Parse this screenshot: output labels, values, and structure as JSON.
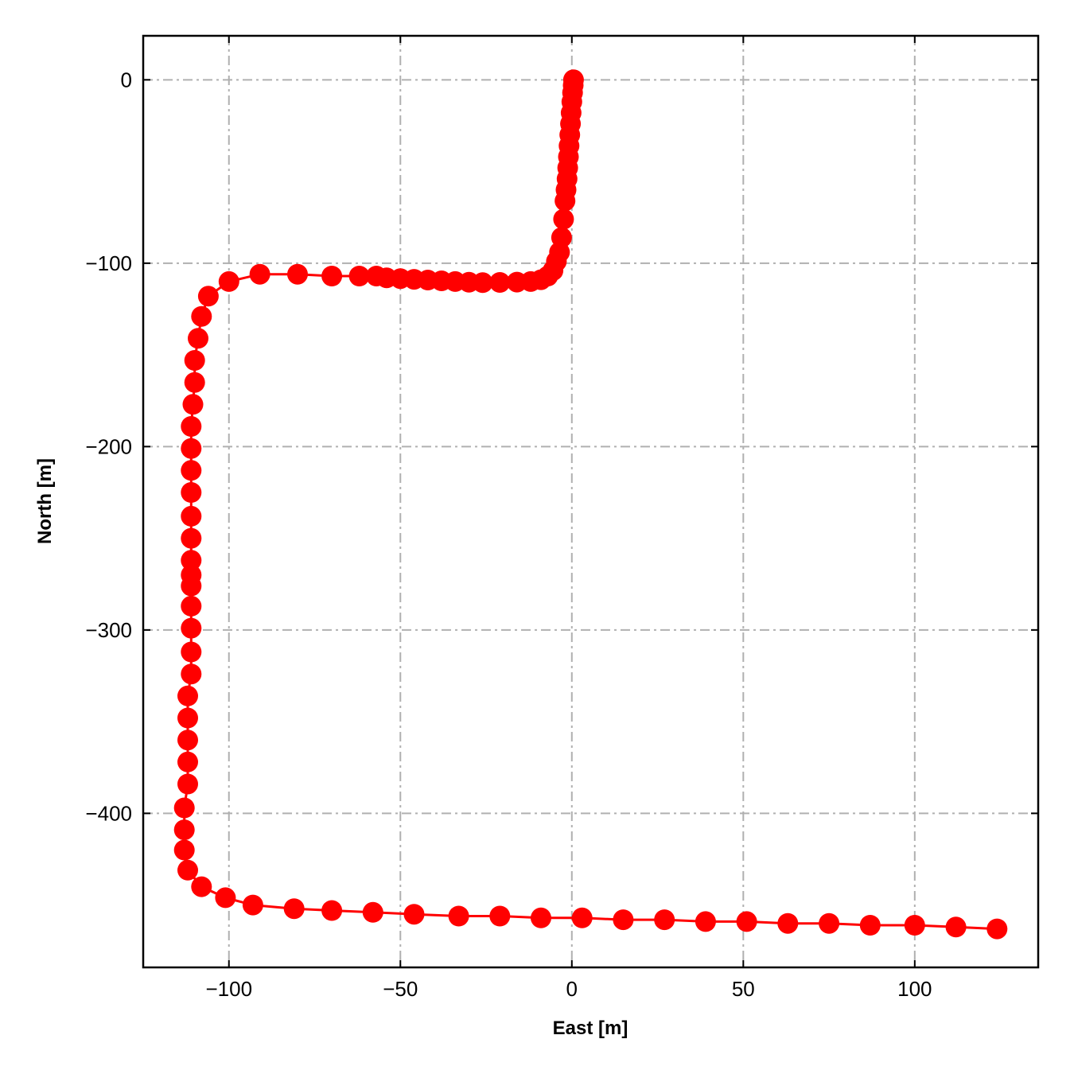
{
  "chart_data": {
    "type": "line",
    "title": "",
    "xlabel": "East [m]",
    "ylabel": "North [m]",
    "xlim": [
      -125,
      136
    ],
    "ylim": [
      -484,
      24
    ],
    "xticks": [
      -100,
      -50,
      0,
      50,
      100
    ],
    "yticks": [
      0,
      -100,
      -200,
      -300,
      -400
    ],
    "xtick_labels": [
      "−100",
      "−50",
      "0",
      "50",
      "100"
    ],
    "ytick_labels": [
      "0",
      "−100",
      "−200",
      "−300",
      "−400"
    ],
    "grid": true,
    "legend": "none",
    "series": [
      {
        "color": "#ff0000",
        "marker": "circle",
        "x": [
          0.5,
          0.4,
          0.2,
          0.0,
          -0.2,
          -0.4,
          -0.6,
          -0.8,
          -1.0,
          -1.2,
          -1.4,
          -1.7,
          -2.0,
          -2.4,
          -3.0,
          -3.6,
          -4.5,
          -5.5,
          -7,
          -9,
          -12,
          -16,
          -21,
          -26,
          -30,
          -34,
          -38,
          -42,
          -46,
          -50,
          -54,
          -57,
          -62,
          -70,
          -80,
          -91,
          -100,
          -106,
          -108,
          -109,
          -110,
          -110,
          -110.5,
          -111,
          -111,
          -111,
          -111,
          -111,
          -111,
          -111,
          -111,
          -111,
          -111,
          -111,
          -111,
          -111,
          -112,
          -112,
          -112,
          -112,
          -112,
          -113,
          -113,
          -113,
          -112,
          -108,
          -101,
          -93,
          -81,
          -70,
          -58,
          -46,
          -33,
          -21,
          -9,
          3,
          15,
          27,
          39,
          51,
          63,
          75,
          87,
          100,
          112,
          124
        ],
        "y": [
          0,
          -3,
          -7,
          -12,
          -18,
          -24,
          -30,
          -36,
          -42,
          -48,
          -54,
          -60,
          -66,
          -76,
          -86,
          -94,
          -99,
          -104,
          -107,
          -109,
          -110,
          -110.3,
          -110.5,
          -110.6,
          -110.4,
          -110,
          -109.6,
          -109.2,
          -108.8,
          -108.4,
          -108,
          -107,
          -107,
          -107,
          -106,
          -106,
          -110,
          -118,
          -129,
          -141,
          -153,
          -165,
          -177,
          -189,
          -201,
          -213,
          -225,
          -238,
          -250,
          -262,
          -270,
          -276,
          -287,
          -299,
          -312,
          -324,
          -336,
          -348,
          -360,
          -372,
          -384,
          -397,
          -409,
          -420,
          -431,
          -440,
          -446,
          -450,
          -452,
          -453,
          -454,
          -455,
          -456,
          -456,
          -457,
          -457,
          -458,
          -458,
          -459,
          -459,
          -460,
          -460,
          -461,
          -461,
          -462,
          -463
        ]
      }
    ]
  }
}
